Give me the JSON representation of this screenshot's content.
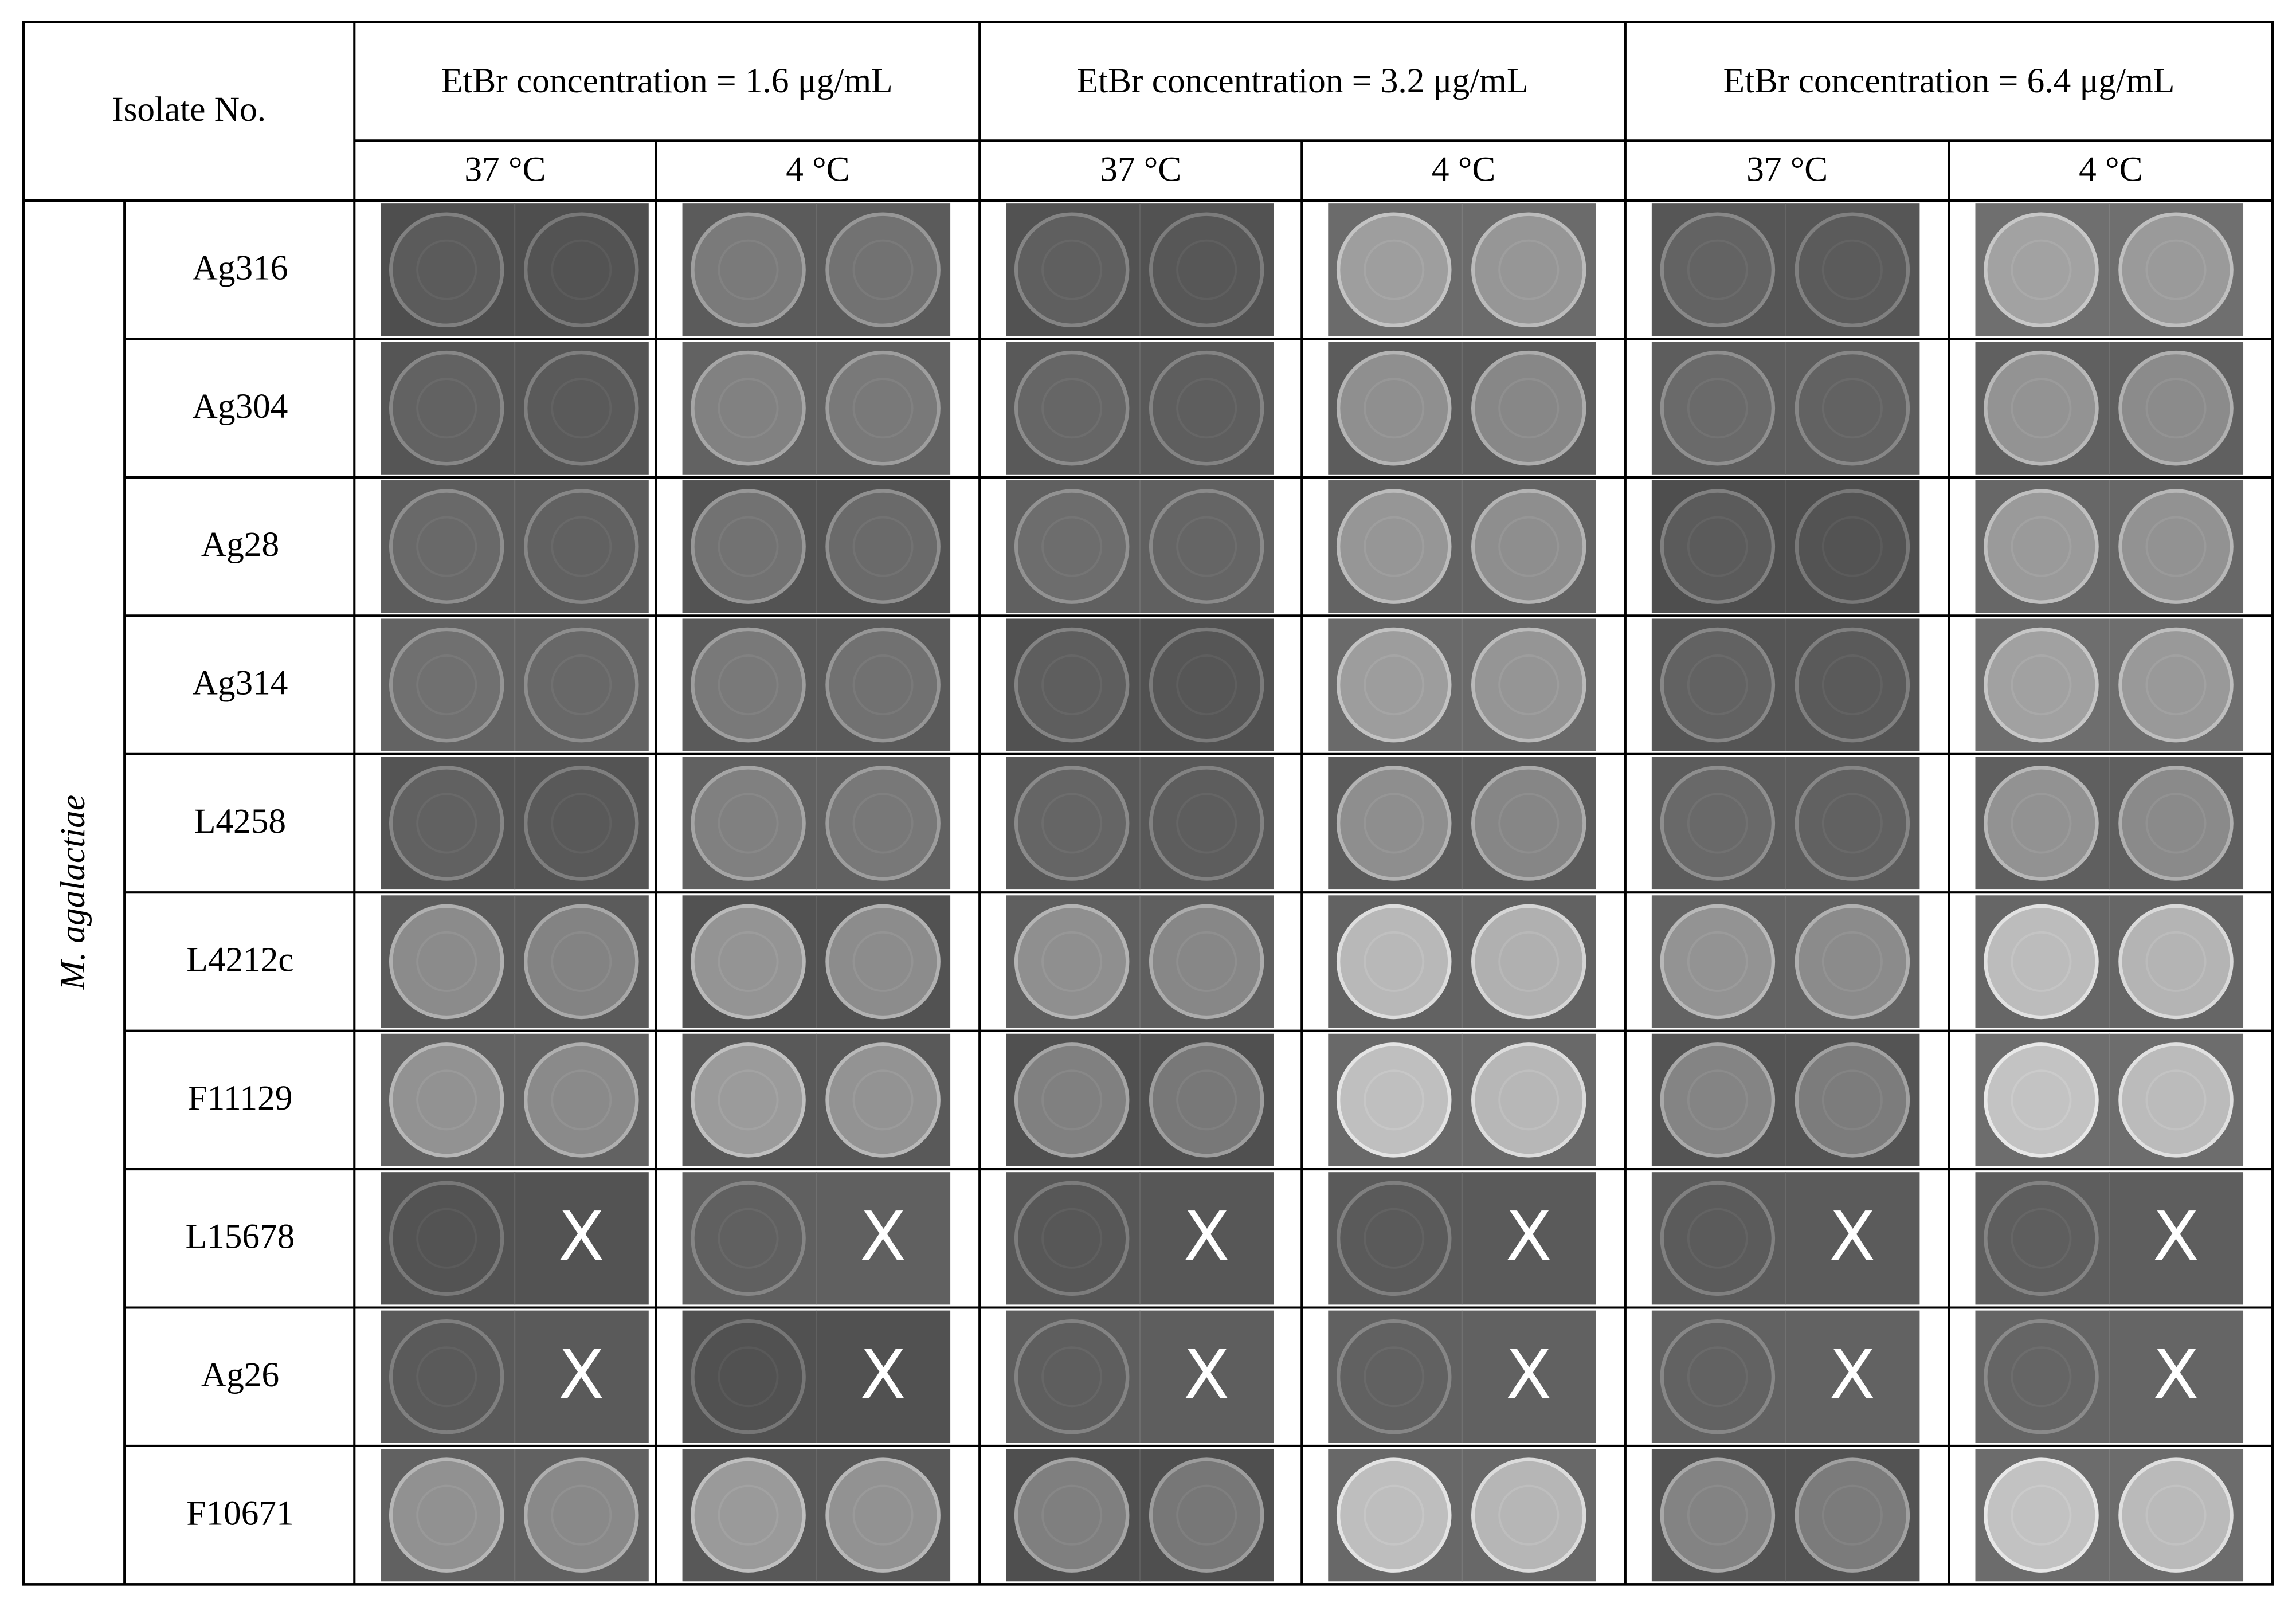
{
  "table": {
    "corner": "Isolate No.",
    "groups": [
      "EtBr concentration = 1.6 μg/mL",
      "EtBr concentration = 3.2 μg/mL",
      "EtBr concentration = 6.4 μg/mL"
    ],
    "subheaders": [
      "37 °C",
      "4 °C",
      "37 °C",
      "4 °C",
      "37 °C",
      "4 °C"
    ],
    "species": "M. agalactiae",
    "rows": [
      {
        "isolate": "Ag316"
      },
      {
        "isolate": "Ag304"
      },
      {
        "isolate": "Ag28"
      },
      {
        "isolate": "Ag314"
      },
      {
        "isolate": "L4258"
      },
      {
        "isolate": "L4212c"
      },
      {
        "isolate": "F11129"
      },
      {
        "isolate": "L15678",
        "absent": [
          "X",
          "X",
          "X",
          "X",
          "X",
          "X"
        ]
      },
      {
        "isolate": "Ag26",
        "absent": [
          "X",
          "X",
          "X",
          "X",
          "X",
          "X"
        ]
      },
      {
        "isolate": "F10671"
      }
    ]
  }
}
